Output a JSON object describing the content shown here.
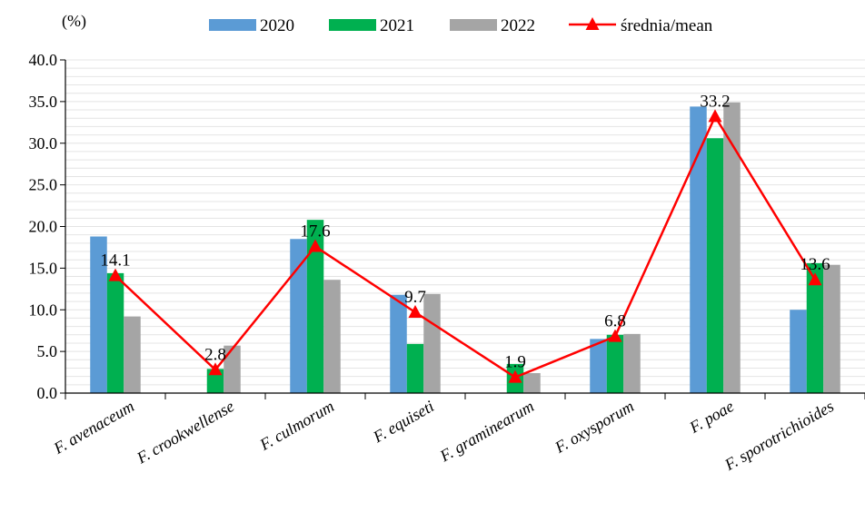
{
  "chart_data": {
    "type": "bar",
    "unit_label": "(%)",
    "categories": [
      "F. avenaceum",
      "F. crookwellense",
      "F. culmorum",
      "F. equiseti",
      "F. graminearum",
      "F. oxysporum",
      "F. poae",
      "F. sporotrichioides"
    ],
    "series": [
      {
        "name": "2020",
        "type": "bar",
        "color": "#5B9BD5",
        "values": [
          18.8,
          0.0,
          18.5,
          11.8,
          0.0,
          6.5,
          34.4,
          10.0
        ]
      },
      {
        "name": "2021",
        "type": "bar",
        "color": "#00B050",
        "values": [
          14.4,
          2.9,
          20.8,
          5.9,
          3.5,
          7.0,
          30.6,
          15.6
        ]
      },
      {
        "name": "2022",
        "type": "bar",
        "color": "#A5A5A5",
        "values": [
          9.2,
          5.7,
          13.6,
          11.9,
          2.4,
          7.1,
          34.9,
          15.4
        ]
      },
      {
        "name": "średnia/mean",
        "type": "line",
        "marker": "triangle",
        "color": "#FF0000",
        "values": [
          14.1,
          2.8,
          17.6,
          9.7,
          1.9,
          6.8,
          33.2,
          13.6
        ]
      }
    ],
    "data_labels": [
      "14.1",
      "2.8",
      "17.6",
      "9.7",
      "1.9",
      "6.8",
      "33.2",
      "13.6"
    ],
    "y_ticks": [
      "0.0",
      "5.0",
      "10.0",
      "15.0",
      "20.0",
      "25.0",
      "30.0",
      "35.0",
      "40.0"
    ],
    "ylim": [
      0,
      40
    ],
    "grid": true,
    "legend_position": "top"
  }
}
